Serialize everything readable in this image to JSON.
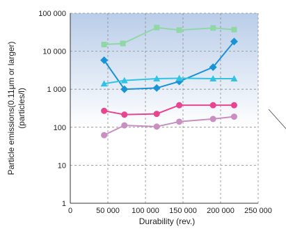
{
  "chart_data": {
    "type": "line",
    "xlabel": "Durability (rev.)",
    "ylabel_line1": "Particle emissions(0.11μm or larger)",
    "ylabel_line2": "(particles/l)",
    "x_scale": "linear",
    "y_scale": "log",
    "xlim": [
      0,
      250000
    ],
    "ylim": [
      1,
      100000
    ],
    "x_ticks": [
      {
        "value": 0,
        "label": "0"
      },
      {
        "value": 50000,
        "label": "50 000"
      },
      {
        "value": 100000,
        "label": "100 000"
      },
      {
        "value": 150000,
        "label": "150 000"
      },
      {
        "value": 200000,
        "label": "200 000"
      },
      {
        "value": 250000,
        "label": "250 000"
      }
    ],
    "y_ticks": [
      {
        "value": 1,
        "label": "1"
      },
      {
        "value": 10,
        "label": "10"
      },
      {
        "value": 100,
        "label": "100"
      },
      {
        "value": 1000,
        "label": "1 000"
      },
      {
        "value": 10000,
        "label": "10 000"
      },
      {
        "value": 100000,
        "label": "100 000"
      }
    ],
    "grid": true,
    "background_gradient": [
      "#b9cde9",
      "#ffffff"
    ],
    "series": [
      {
        "marker": "square",
        "color": "#8fd8a6",
        "x": [
          45000,
          70000,
          115000,
          145000,
          190000,
          218000
        ],
        "y": [
          15000,
          16000,
          42000,
          36000,
          41000,
          37000
        ]
      },
      {
        "marker": "diamond",
        "color": "#1793d6",
        "x": [
          45000,
          72000,
          115000,
          145000,
          190000,
          218000
        ],
        "y": [
          5800,
          1000,
          1080,
          1600,
          3800,
          18000
        ]
      },
      {
        "marker": "triangle",
        "color": "#30c3e3",
        "x": [
          45000,
          72000,
          115000,
          145000,
          190000,
          218000
        ],
        "y": [
          1400,
          1700,
          1900,
          1950,
          1900,
          1900
        ]
      },
      {
        "marker": "circle",
        "color": "#e8448f",
        "x": [
          45000,
          72000,
          115000,
          145000,
          190000,
          218000
        ],
        "y": [
          270,
          215,
          225,
          380,
          380,
          380
        ]
      },
      {
        "marker": "circle",
        "color": "#c88fc0",
        "x": [
          45000,
          72000,
          115000,
          145000,
          190000,
          218000
        ],
        "y": [
          62,
          112,
          104,
          140,
          165,
          190
        ]
      }
    ]
  }
}
